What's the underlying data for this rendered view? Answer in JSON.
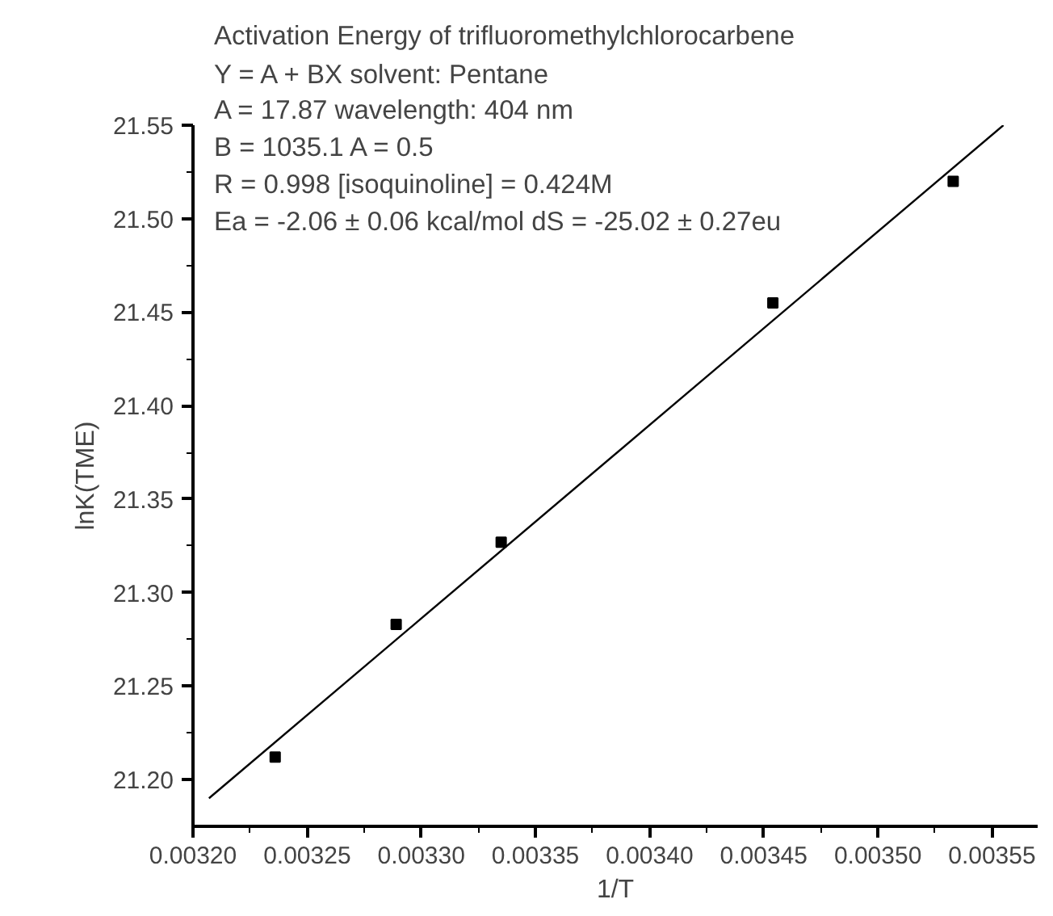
{
  "chart_data": {
    "type": "scatter",
    "title": "Activation Energy of trifluoromethylchlorocarbene",
    "xlabel": "1/T",
    "ylabel": "lnK(TME)",
    "annotations": [
      "Y = A + BX      solvent: Pentane",
      "A = 17.87        wavelength: 404 nm",
      "B = 1035.1     A = 0.5",
      "R = 0.998        [isoquinoline] = 0.424M",
      "Ea = -2.06 ± 0.06 kcal/mol  dS = -25.02 ± 0.27eu"
    ],
    "series": [
      {
        "color": "#000000",
        "marker": "square",
        "x": [
          0.003236,
          0.003289,
          0.003335,
          0.003454,
          0.003533
        ],
        "values": [
          21.212,
          21.283,
          21.327,
          21.455,
          21.52
        ]
      },
      {
        "type": "line",
        "color": "#000000",
        "line_style": "solid",
        "x": [
          0.003207,
          0.003555
        ],
        "values": [
          21.19,
          21.55
        ]
      }
    ],
    "xlim": [
      0.0032,
      0.00357
    ],
    "ylim": [
      21.175,
      21.55
    ],
    "xticks": [
      {
        "value": 0.0032,
        "label": "0.00320"
      },
      {
        "value": 0.00325,
        "label": "0.00325"
      },
      {
        "value": 0.0033,
        "label": "0.00330"
      },
      {
        "value": 0.00335,
        "label": "0.00335"
      },
      {
        "value": 0.0034,
        "label": "0.00340"
      },
      {
        "value": 0.00345,
        "label": "0.00345"
      },
      {
        "value": 0.0035,
        "label": "0.00350"
      },
      {
        "value": 0.00355,
        "label": "0.00355"
      }
    ],
    "yticks": [
      {
        "value": 21.2,
        "label": "21.20"
      },
      {
        "value": 21.25,
        "label": "21.25"
      },
      {
        "value": 21.3,
        "label": "21.30"
      },
      {
        "value": 21.35,
        "label": "21.35"
      },
      {
        "value": 21.4,
        "label": "21.40"
      },
      {
        "value": 21.45,
        "label": "21.45"
      },
      {
        "value": 21.5,
        "label": "21.50"
      },
      {
        "value": 21.55,
        "label": "21.55"
      }
    ],
    "grid": false
  }
}
